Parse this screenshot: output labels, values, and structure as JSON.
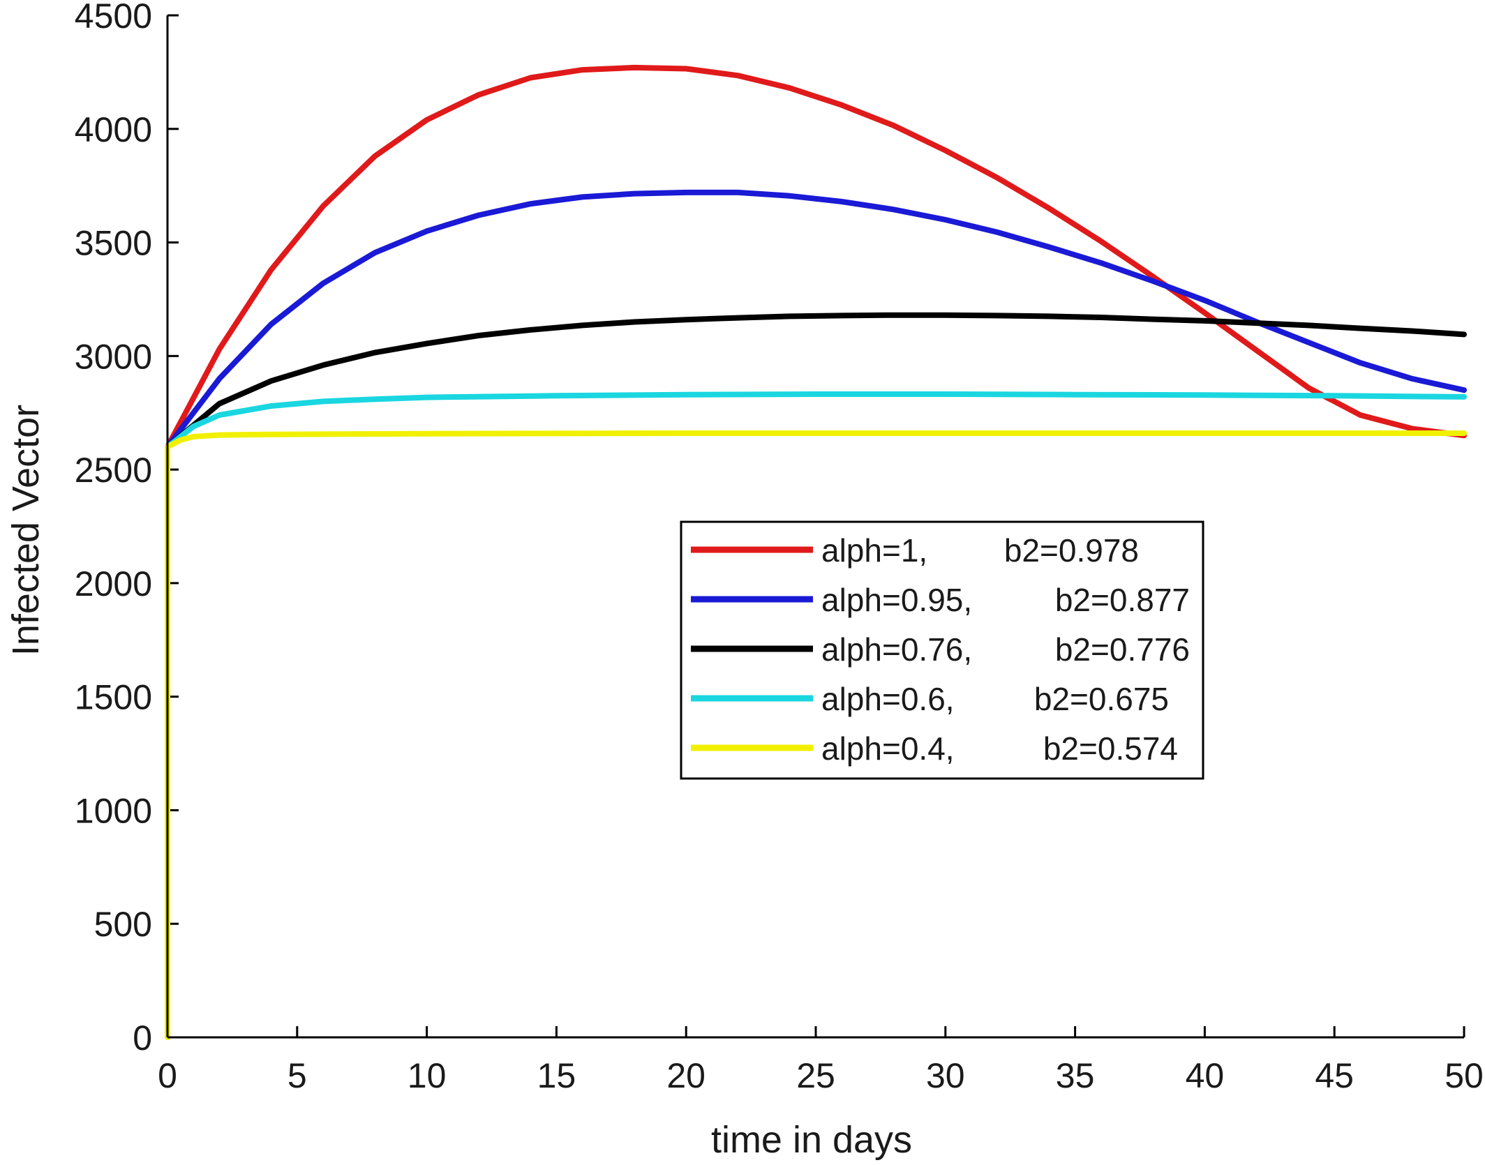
{
  "chart_data": {
    "type": "line",
    "title": "",
    "xlabel": "time in days",
    "ylabel": "Infected Vector",
    "xlim": [
      0,
      50
    ],
    "ylim": [
      0,
      4500
    ],
    "xticks": [
      0,
      5,
      10,
      15,
      20,
      25,
      30,
      35,
      40,
      45,
      50
    ],
    "yticks": [
      0,
      500,
      1000,
      1500,
      2000,
      2500,
      3000,
      3500,
      4000,
      4500
    ],
    "grid": false,
    "legend_position": "center-right",
    "series": [
      {
        "name": "alph=1,     b2=0.978",
        "legend_left": "alph=1,",
        "legend_right": "b2=0.978",
        "color": "#e01a1a",
        "x": [
          0,
          2,
          4,
          6,
          8,
          10,
          12,
          14,
          16,
          18,
          20,
          22,
          24,
          26,
          28,
          30,
          32,
          34,
          36,
          38,
          40,
          42,
          44,
          46,
          48,
          50
        ],
        "y": [
          2600,
          3030,
          3380,
          3660,
          3880,
          4040,
          4150,
          4225,
          4260,
          4270,
          4265,
          4235,
          4180,
          4105,
          4015,
          3905,
          3785,
          3650,
          3505,
          3350,
          3190,
          3025,
          2860,
          2740,
          2680,
          2650
        ]
      },
      {
        "name": "alph=0.95,     b2=0.877",
        "legend_left": "alph=0.95,",
        "legend_right": "b2=0.877",
        "color": "#1a1ad6",
        "x": [
          0,
          2,
          4,
          6,
          8,
          10,
          12,
          14,
          16,
          18,
          20,
          22,
          24,
          26,
          28,
          30,
          32,
          34,
          36,
          38,
          40,
          42,
          44,
          46,
          48,
          50
        ],
        "y": [
          2600,
          2900,
          3140,
          3320,
          3455,
          3550,
          3620,
          3670,
          3700,
          3715,
          3720,
          3720,
          3705,
          3680,
          3645,
          3600,
          3545,
          3480,
          3410,
          3330,
          3245,
          3150,
          3060,
          2970,
          2900,
          2850
        ]
      },
      {
        "name": "alph=0.76,     b2=0.776",
        "legend_left": "alph=0.76,",
        "legend_right": "b2=0.776",
        "color": "#000000",
        "x": [
          0,
          2,
          4,
          6,
          8,
          10,
          12,
          14,
          16,
          18,
          20,
          22,
          24,
          26,
          28,
          30,
          32,
          34,
          36,
          38,
          40,
          42,
          44,
          46,
          48,
          50
        ],
        "y": [
          2600,
          2790,
          2890,
          2960,
          3015,
          3055,
          3090,
          3115,
          3135,
          3150,
          3160,
          3168,
          3175,
          3178,
          3180,
          3180,
          3178,
          3175,
          3170,
          3162,
          3155,
          3145,
          3135,
          3122,
          3110,
          3095
        ]
      },
      {
        "name": "alph=0.6,     b2=0.675",
        "legend_left": "alph=0.6,",
        "legend_right": "b2=0.675",
        "color": "#1ad6e0",
        "x": [
          0,
          1,
          2,
          4,
          6,
          8,
          10,
          15,
          20,
          25,
          30,
          35,
          40,
          45,
          50
        ],
        "y": [
          2600,
          2690,
          2740,
          2780,
          2800,
          2810,
          2818,
          2825,
          2830,
          2832,
          2832,
          2830,
          2828,
          2825,
          2820
        ]
      },
      {
        "name": "alph=0.4,     b2=0.574",
        "legend_left": "alph=0.4,",
        "legend_right": "b2=0.574",
        "color": "#f0f000",
        "x": [
          0,
          0,
          0.5,
          1,
          2,
          4,
          10,
          20,
          30,
          40,
          50
        ],
        "y": [
          0,
          2600,
          2630,
          2645,
          2652,
          2655,
          2658,
          2660,
          2660,
          2660,
          2660
        ]
      }
    ]
  }
}
